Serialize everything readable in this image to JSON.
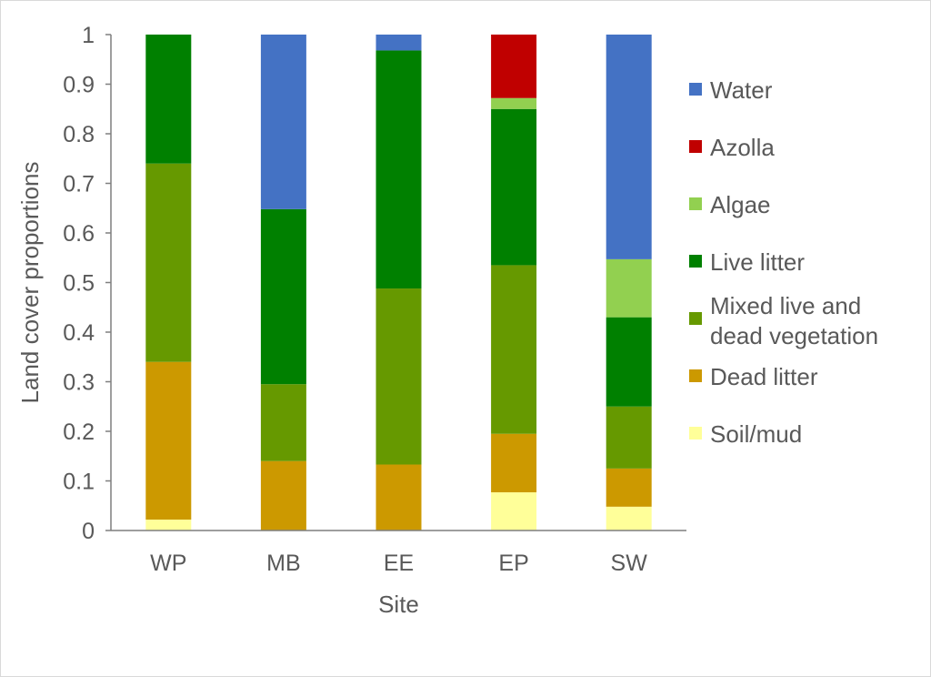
{
  "chart_data": {
    "type": "bar",
    "stacked": true,
    "title": "",
    "xlabel": "Site",
    "ylabel": "Land cover proportions",
    "ylim": [
      0,
      1
    ],
    "yticks": [
      "0",
      "0.1",
      "0.2",
      "0.3",
      "0.4",
      "0.5",
      "0.6",
      "0.7",
      "0.8",
      "0.9",
      "1"
    ],
    "categories": [
      "WP",
      "MB",
      "EE",
      "EP",
      "SW"
    ],
    "grid": false,
    "legend_position": "right",
    "series": [
      {
        "name": "Soil/mud",
        "color": "#FFFF99",
        "values": [
          0.022,
          0.0,
          0.0,
          0.077,
          0.048
        ]
      },
      {
        "name": "Dead litter",
        "color": "#CC9900",
        "values": [
          0.318,
          0.14,
          0.133,
          0.118,
          0.077
        ]
      },
      {
        "name": "Mixed live and dead vegetation",
        "color": "#669900",
        "values": [
          0.4,
          0.155,
          0.355,
          0.34,
          0.125
        ]
      },
      {
        "name": "Live litter",
        "color": "#008000",
        "values": [
          0.26,
          0.353,
          0.48,
          0.315,
          0.18
        ]
      },
      {
        "name": "Algae",
        "color": "#92D050",
        "values": [
          0.0,
          0.0,
          0.0,
          0.022,
          0.117
        ]
      },
      {
        "name": "Azolla",
        "color": "#C00000",
        "values": [
          0.0,
          0.0,
          0.0,
          0.128,
          0.0
        ]
      },
      {
        "name": "Water",
        "color": "#4472C4",
        "values": [
          0.0,
          0.352,
          0.032,
          0.0,
          0.453
        ]
      }
    ],
    "legend_order": [
      "Water",
      "Azolla",
      "Algae",
      "Live litter",
      "Mixed live and dead vegetation",
      "Dead litter",
      "Soil/mud"
    ],
    "legend_label_lines": {
      "Mixed live and dead vegetation": [
        "Mixed live and",
        "dead vegetation"
      ]
    }
  }
}
